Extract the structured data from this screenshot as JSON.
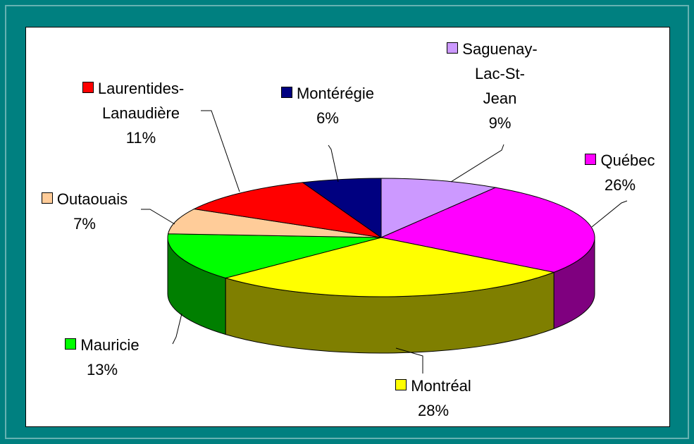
{
  "chart_data": {
    "type": "pie",
    "categories": [
      "Saguenay-Lac-St-Jean",
      "Québec",
      "Montréal",
      "Mauricie",
      "Outaouais",
      "Laurentides-Lanaudière",
      "Montérégie"
    ],
    "values": [
      9,
      26,
      28,
      13,
      7,
      11,
      6
    ],
    "value_labels": [
      "9%",
      "26%",
      "28%",
      "13%",
      "7%",
      "11%",
      "6%"
    ],
    "colors": [
      "#cc99ff",
      "#ff00ff",
      "#ffff00",
      "#00ff00",
      "#ffcc99",
      "#ff0000",
      "#000080"
    ],
    "three_d": true
  }
}
